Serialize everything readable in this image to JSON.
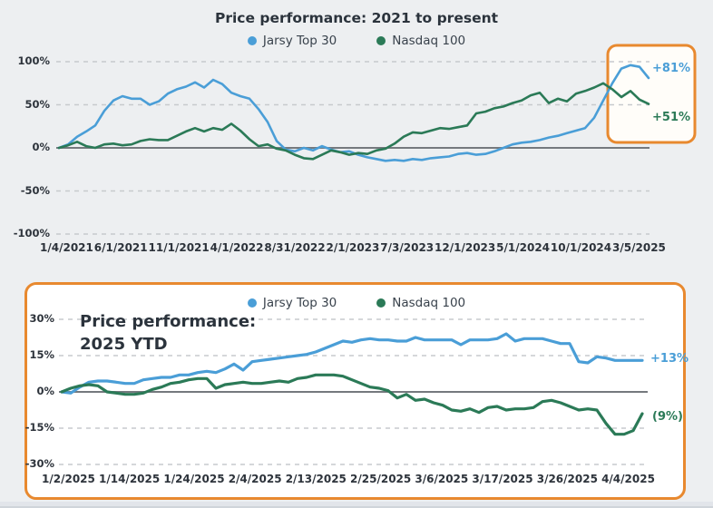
{
  "colors": {
    "jarsy_blue": "#4a9ed7",
    "nasdaq_green": "#2b7a57",
    "highlight_orange": "#e8892f",
    "zero_line": "#75797e",
    "gridline": "#c7cacd",
    "text_dark": "#2d333b"
  },
  "chart_data": [
    {
      "id": "performance-2021-present",
      "type": "line",
      "title": "Price performance: 2021 to present",
      "unit": "percent",
      "legend_position": "top center",
      "grid": "horizontal dashed, solid zero line",
      "ylim": [
        -110,
        112
      ],
      "y_ticks": [
        {
          "value": 100,
          "label": "100%"
        },
        {
          "value": 50,
          "label": "50%"
        },
        {
          "value": 0,
          "label": "0%"
        },
        {
          "value": -50,
          "label": "-50%"
        },
        {
          "value": -100,
          "label": "-100%"
        }
      ],
      "x_tick_labels": [
        "1/4/2021",
        "6/1/2021",
        "11/1/2021",
        "4/1/2022",
        "8/31/2022",
        "2/1/2023",
        "7/3/2023",
        "12/1/2023",
        "5/1/2024",
        "10/1/2024",
        "3/5/2025"
      ],
      "series": [
        {
          "name": "Jarsy Top 30",
          "color": "#4a9ed7",
          "end_label": "+81%",
          "values": [
            0,
            4,
            13,
            19,
            26,
            43,
            55,
            60,
            57,
            57,
            50,
            54,
            63,
            68,
            71,
            76,
            70,
            79,
            74,
            64,
            60,
            57,
            45,
            30,
            8,
            -2,
            -4,
            0,
            -3,
            2,
            -2,
            -5,
            -4,
            -8,
            -11,
            -13,
            -15,
            -14,
            -15,
            -13,
            -14,
            -12,
            -11,
            -10,
            -7,
            -6,
            -8,
            -7,
            -4,
            0,
            4,
            6,
            7,
            9,
            12,
            14,
            17,
            20,
            23,
            35,
            55,
            75,
            92,
            96,
            94,
            81
          ]
        },
        {
          "name": "Nasdaq 100",
          "color": "#2b7a57",
          "end_label": "+51%",
          "values": [
            0,
            3,
            7,
            2,
            0,
            4,
            5,
            3,
            4,
            8,
            10,
            9,
            9,
            14,
            19,
            23,
            19,
            23,
            21,
            28,
            20,
            10,
            2,
            4,
            -1,
            -3,
            -8,
            -12,
            -13,
            -8,
            -3,
            -5,
            -8,
            -6,
            -7,
            -3,
            -1,
            5,
            13,
            18,
            17,
            20,
            23,
            22,
            24,
            26,
            40,
            42,
            46,
            48,
            52,
            55,
            61,
            64,
            52,
            57,
            54,
            63,
            66,
            70,
            75,
            68,
            59,
            66,
            56,
            51
          ]
        }
      ],
      "highlight": {
        "shape": "rounded rectangle",
        "color": "#e8892f",
        "note": "highlights the most recent months (2025) with end values +81% and +51%"
      }
    },
    {
      "id": "performance-2025-ytd",
      "type": "line",
      "title": "Price performance: 2025 YTD",
      "title_line1": "Price performance:",
      "title_line2": "2025 YTD",
      "unit": "percent",
      "legend_position": "top center",
      "grid": "horizontal dashed, solid zero line",
      "ylim": [
        -32,
        33
      ],
      "y_ticks": [
        {
          "value": 30,
          "label": "30%"
        },
        {
          "value": 15,
          "label": "15%"
        },
        {
          "value": 0,
          "label": "0%"
        },
        {
          "value": -15,
          "label": "-15%"
        },
        {
          "value": -30,
          "label": "-30%"
        }
      ],
      "x_tick_labels": [
        "1/2/2025",
        "1/14/2025",
        "1/24/2025",
        "2/4/2025",
        "2/13/2025",
        "2/25/2025",
        "3/6/2025",
        "3/17/2025",
        "3/26/2025",
        "4/4/2025"
      ],
      "series": [
        {
          "name": "Jarsy Top 30",
          "color": "#4a9ed7",
          "end_label": "+13%",
          "values": [
            0,
            -0.5,
            2,
            4,
            4.5,
            4.5,
            4,
            3.5,
            3.5,
            5,
            5.5,
            6,
            6,
            7,
            7,
            8,
            8.5,
            8,
            9.5,
            11.5,
            9,
            12.5,
            13,
            13.5,
            14,
            14.5,
            15,
            15.5,
            16.5,
            18,
            19.5,
            21,
            20.5,
            21.5,
            22,
            21.5,
            21.5,
            21,
            21,
            22.5,
            21.5,
            21.5,
            21.5,
            21.5,
            19.5,
            21.5,
            21.5,
            21.5,
            22,
            24,
            21,
            22,
            22,
            22,
            21,
            20,
            20,
            12.5,
            12,
            14.5,
            14,
            13,
            13,
            13,
            13
          ]
        },
        {
          "name": "Nasdaq 100",
          "color": "#2b7a57",
          "end_label": "(9%)",
          "values": [
            0,
            1.5,
            2.5,
            3,
            2.5,
            0,
            -0.5,
            -1,
            -1,
            -0.5,
            1,
            2,
            3.5,
            4,
            5,
            5.5,
            5.5,
            1.5,
            3,
            3.5,
            4,
            3.5,
            3.5,
            4,
            4.5,
            4,
            5.5,
            6,
            7,
            7,
            7,
            6.5,
            5,
            3.5,
            2,
            1.5,
            0.5,
            -2.5,
            -1,
            -3.5,
            -3,
            -4.5,
            -5.5,
            -7.5,
            -8,
            -7,
            -8.5,
            -6.5,
            -6,
            -7.5,
            -7,
            -7,
            -6.5,
            -4,
            -3.5,
            -4.5,
            -6,
            -7.5,
            -7,
            -7.5,
            -13,
            -17.5,
            -17.5,
            -16,
            -9
          ]
        }
      ]
    }
  ]
}
